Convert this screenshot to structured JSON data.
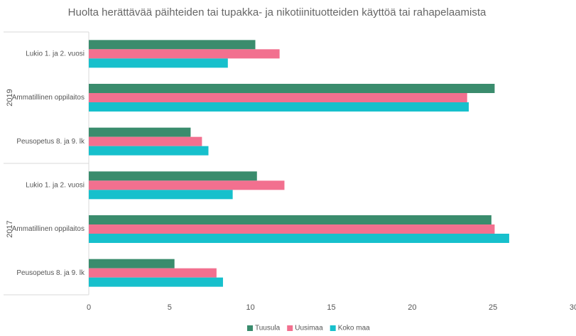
{
  "chart_data": {
    "type": "bar",
    "orientation": "horizontal",
    "title": "Huolta herättävää päihteiden tai tupakka- ja nikotiinituotteiden käyttöä tai rahapelaamista",
    "groups": [
      "2019",
      "2017"
    ],
    "categories": [
      [
        "Lukio 1. ja 2. vuosi",
        "Ammatillinen oppilaitos",
        "Peusopetus 8. ja 9. lk"
      ],
      [
        "Lukio 1. ja 2. vuosi",
        "Ammatillinen oppilaitos",
        "Peusopetus 8. ja 9. lk"
      ]
    ],
    "series": [
      {
        "name": "Tuusula",
        "color": "#3a8c6d",
        "values": [
          [
            10.3,
            25.1,
            6.3
          ],
          [
            10.4,
            24.9,
            5.3
          ]
        ]
      },
      {
        "name": "Uusimaa",
        "color": "#f2708f",
        "values": [
          [
            11.8,
            23.4,
            7.0
          ],
          [
            12.1,
            25.1,
            7.9
          ]
        ]
      },
      {
        "name": "Koko maa",
        "color": "#17c0cc",
        "values": [
          [
            8.6,
            23.5,
            7.4
          ],
          [
            8.9,
            26.0,
            8.3
          ]
        ]
      }
    ],
    "xlim": [
      0,
      30
    ],
    "xticks": [
      0,
      5,
      10,
      15,
      20,
      25,
      30
    ],
    "grid": false,
    "legend": "bottom"
  }
}
